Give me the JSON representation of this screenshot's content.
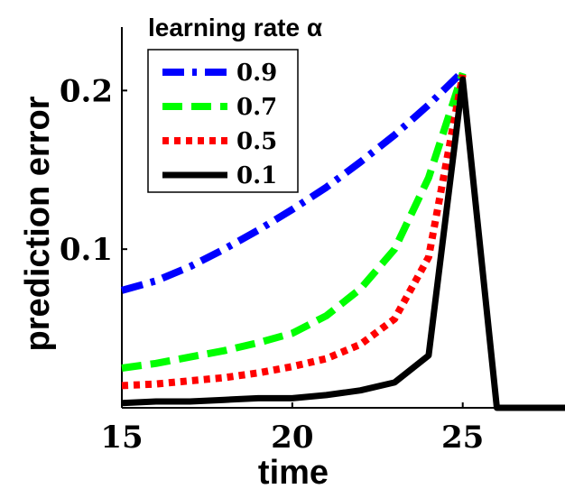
{
  "chart_data": {
    "type": "line",
    "xlabel": "time",
    "ylabel": "prediction error",
    "xlim": [
      15,
      28
    ],
    "ylim": [
      0,
      0.24
    ],
    "x_ticks": [
      15,
      20,
      25
    ],
    "x_tick_labels": [
      "15",
      "20",
      "25"
    ],
    "y_ticks": [
      0.1,
      0.2
    ],
    "y_tick_labels": [
      "0.1",
      "0.2"
    ],
    "grid": false,
    "legend": {
      "title": "learning rate α",
      "placement": "top-left"
    },
    "x": [
      15,
      16,
      17,
      18,
      19,
      20,
      21,
      22,
      23,
      24,
      25,
      26,
      27,
      28
    ],
    "series": [
      {
        "name": "0.9",
        "color": "#0000ff",
        "style": "dash-dot",
        "values": [
          0.074,
          0.08,
          0.089,
          0.1,
          0.112,
          0.125,
          0.139,
          0.155,
          0.172,
          0.191,
          0.212,
          null,
          null,
          null
        ]
      },
      {
        "name": "0.7",
        "color": "#00ff00",
        "style": "dashed",
        "values": [
          0.025,
          0.028,
          0.032,
          0.036,
          0.041,
          0.047,
          0.058,
          0.075,
          0.1,
          0.145,
          0.211,
          null,
          null,
          null
        ]
      },
      {
        "name": "0.5",
        "color": "#ff0000",
        "style": "dotted",
        "values": [
          0.014,
          0.015,
          0.017,
          0.019,
          0.022,
          0.026,
          0.031,
          0.04,
          0.056,
          0.095,
          0.21,
          null,
          null,
          null
        ]
      },
      {
        "name": "0.1",
        "color": "#000000",
        "style": "solid",
        "values": [
          0.003,
          0.004,
          0.004,
          0.005,
          0.006,
          0.006,
          0.008,
          0.011,
          0.016,
          0.033,
          0.207,
          0.0,
          0.0,
          0.0
        ]
      }
    ]
  }
}
